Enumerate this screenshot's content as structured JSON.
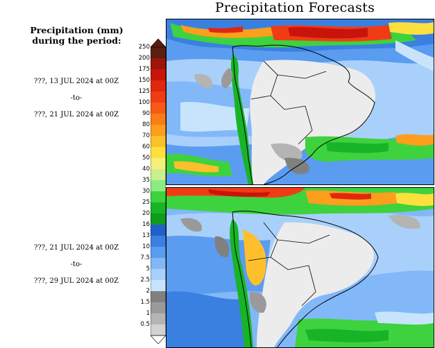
{
  "title": "Precipitation Forecasts",
  "legend": {
    "header_line1": "Precipitation (mm)",
    "header_line2": "during the period:",
    "levels": [
      "250",
      "200",
      "175",
      "150",
      "125",
      "100",
      "90",
      "80",
      "70",
      "60",
      "50",
      "40",
      "35",
      "30",
      "25",
      "20",
      "16",
      "13",
      "10",
      "7.5",
      "5",
      "2.5",
      "2",
      "1.5",
      "1",
      "0.5"
    ],
    "colors": [
      "#5a1f12",
      "#9e1409",
      "#c8140b",
      "#e0280f",
      "#f03c14",
      "#f85a16",
      "#fb7c16",
      "#fd9e1c",
      "#fdc02c",
      "#fde03e",
      "#f4f07a",
      "#c8f08c",
      "#8cec82",
      "#3ed23e",
      "#18b428",
      "#109a1e",
      "#2060c8",
      "#3a80e0",
      "#5a9cf0",
      "#82b8f8",
      "#a8d0fa",
      "#c8e4fc",
      "#808080",
      "#9a9a9a",
      "#b4b4b4",
      "#d2d2d2"
    ]
  },
  "periods": [
    {
      "start": "???, 13 JUL 2024 at 00Z",
      "sep": "-to-",
      "end": "???, 21 JUL 2024 at 00Z"
    },
    {
      "start": "???, 21 JUL 2024 at 00Z",
      "sep": "-to-",
      "end": "???, 29 JUL 2024 at 00Z"
    }
  ]
}
